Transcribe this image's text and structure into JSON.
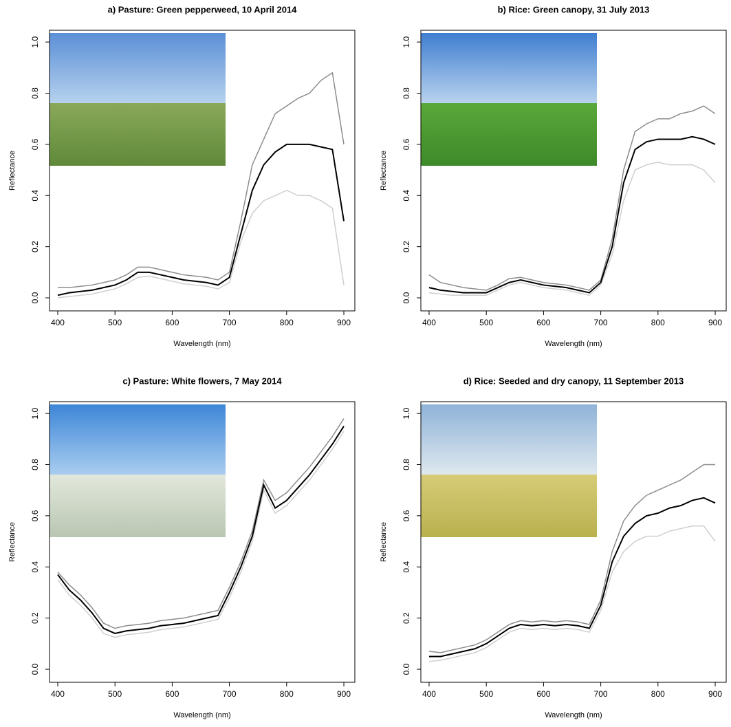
{
  "chart_data": [
    {
      "type": "line",
      "title": "a) Pasture: Green pepperweed, 10 April 2014",
      "xlabel": "Wavelength (nm)",
      "ylabel": "Reflectance",
      "x": [
        400,
        420,
        440,
        460,
        480,
        500,
        520,
        540,
        560,
        580,
        600,
        620,
        640,
        660,
        680,
        700,
        720,
        740,
        760,
        780,
        800,
        820,
        840,
        860,
        880,
        900
      ],
      "series": [
        {
          "color": "#8c8c8c",
          "values": [
            0.04,
            0.04,
            0.045,
            0.05,
            0.06,
            0.07,
            0.09,
            0.12,
            0.12,
            0.11,
            0.1,
            0.09,
            0.085,
            0.08,
            0.07,
            0.1,
            0.3,
            0.52,
            0.62,
            0.72,
            0.75,
            0.78,
            0.8,
            0.85,
            0.88,
            0.6
          ]
        },
        {
          "color": "#cfcfcf",
          "values": [
            0.0,
            0.005,
            0.01,
            0.015,
            0.025,
            0.035,
            0.055,
            0.08,
            0.085,
            0.075,
            0.065,
            0.055,
            0.05,
            0.045,
            0.035,
            0.06,
            0.22,
            0.33,
            0.38,
            0.4,
            0.42,
            0.4,
            0.4,
            0.38,
            0.35,
            0.05
          ]
        },
        {
          "color": "#000000",
          "values": [
            0.01,
            0.02,
            0.025,
            0.03,
            0.04,
            0.05,
            0.07,
            0.1,
            0.1,
            0.09,
            0.08,
            0.07,
            0.065,
            0.06,
            0.05,
            0.08,
            0.25,
            0.42,
            0.52,
            0.57,
            0.6,
            0.6,
            0.6,
            0.59,
            0.58,
            0.3
          ]
        }
      ],
      "xlim": [
        385.6,
        919.2
      ],
      "ylim": [
        -0.051,
        1.046
      ],
      "xticks": [
        400,
        500,
        600,
        700,
        800,
        900
      ],
      "yticks": [
        {
          "value": 0,
          "label": "0.0"
        },
        0.2,
        0.4,
        0.6,
        0.8,
        {
          "value": 1,
          "label": "1.0"
        }
      ]
    },
    {
      "type": "line",
      "title": "b) Rice: Green canopy, 31 July 2013",
      "xlabel": "Wavelength (nm)",
      "ylabel": "Reflectance",
      "x": [
        400,
        420,
        440,
        460,
        480,
        500,
        520,
        540,
        560,
        580,
        600,
        620,
        640,
        660,
        680,
        700,
        720,
        740,
        760,
        780,
        800,
        820,
        840,
        860,
        880,
        900
      ],
      "series": [
        {
          "color": "#8c8c8c",
          "values": [
            0.09,
            0.06,
            0.05,
            0.04,
            0.035,
            0.03,
            0.05,
            0.075,
            0.08,
            0.07,
            0.06,
            0.055,
            0.05,
            0.04,
            0.03,
            0.07,
            0.23,
            0.5,
            0.65,
            0.68,
            0.7,
            0.7,
            0.72,
            0.73,
            0.75,
            0.72
          ]
        },
        {
          "color": "#cfcfcf",
          "values": [
            0.02,
            0.015,
            0.01,
            0.01,
            0.01,
            0.01,
            0.03,
            0.05,
            0.06,
            0.05,
            0.04,
            0.035,
            0.03,
            0.02,
            0.01,
            0.05,
            0.17,
            0.38,
            0.5,
            0.52,
            0.53,
            0.52,
            0.52,
            0.52,
            0.5,
            0.45
          ]
        },
        {
          "color": "#000000",
          "values": [
            0.04,
            0.03,
            0.025,
            0.02,
            0.02,
            0.02,
            0.04,
            0.06,
            0.07,
            0.06,
            0.05,
            0.045,
            0.04,
            0.03,
            0.02,
            0.06,
            0.2,
            0.45,
            0.58,
            0.61,
            0.62,
            0.62,
            0.62,
            0.63,
            0.62,
            0.6
          ]
        }
      ],
      "xlim": [
        385.6,
        919.2
      ],
      "ylim": [
        -0.051,
        1.046
      ],
      "xticks": [
        400,
        500,
        600,
        700,
        800,
        900
      ],
      "yticks": [
        {
          "value": 0,
          "label": "0.0"
        },
        0.2,
        0.4,
        0.6,
        0.8,
        {
          "value": 1,
          "label": "1.0"
        }
      ]
    },
    {
      "type": "line",
      "title": "c) Pasture: White flowers, 7 May 2014",
      "xlabel": "Wavelength (nm)",
      "ylabel": "Reflectance",
      "x": [
        400,
        420,
        440,
        460,
        480,
        500,
        520,
        540,
        560,
        580,
        600,
        620,
        640,
        660,
        680,
        700,
        720,
        740,
        760,
        780,
        800,
        820,
        840,
        860,
        880,
        900
      ],
      "series": [
        {
          "color": "#8c8c8c",
          "values": [
            0.38,
            0.33,
            0.29,
            0.24,
            0.18,
            0.16,
            0.17,
            0.175,
            0.18,
            0.19,
            0.195,
            0.2,
            0.21,
            0.22,
            0.23,
            0.32,
            0.42,
            0.54,
            0.74,
            0.66,
            0.69,
            0.74,
            0.79,
            0.85,
            0.91,
            0.98
          ]
        },
        {
          "color": "#cfcfcf",
          "values": [
            0.35,
            0.29,
            0.25,
            0.2,
            0.14,
            0.125,
            0.135,
            0.14,
            0.145,
            0.155,
            0.16,
            0.165,
            0.175,
            0.185,
            0.195,
            0.28,
            0.38,
            0.5,
            0.7,
            0.61,
            0.64,
            0.69,
            0.74,
            0.8,
            0.86,
            0.93
          ]
        },
        {
          "color": "#000000",
          "values": [
            0.37,
            0.31,
            0.27,
            0.22,
            0.16,
            0.14,
            0.15,
            0.155,
            0.16,
            0.17,
            0.175,
            0.18,
            0.19,
            0.2,
            0.21,
            0.3,
            0.4,
            0.52,
            0.72,
            0.63,
            0.66,
            0.71,
            0.76,
            0.82,
            0.88,
            0.95
          ]
        }
      ],
      "xlim": [
        385.6,
        919.2
      ],
      "ylim": [
        -0.051,
        1.046
      ],
      "xticks": [
        400,
        500,
        600,
        700,
        800,
        900
      ],
      "yticks": [
        {
          "value": 0,
          "label": "0.0"
        },
        0.2,
        0.4,
        0.6,
        0.8,
        {
          "value": 1,
          "label": "1.0"
        }
      ]
    },
    {
      "type": "line",
      "title": "d) Rice: Seeded and dry canopy, 11 September 2013",
      "xlabel": "Wavelength (nm)",
      "ylabel": "Reflectance",
      "x": [
        400,
        420,
        440,
        460,
        480,
        500,
        520,
        540,
        560,
        580,
        600,
        620,
        640,
        660,
        680,
        700,
        720,
        740,
        760,
        780,
        800,
        820,
        840,
        860,
        880,
        900
      ],
      "series": [
        {
          "color": "#8c8c8c",
          "values": [
            0.07,
            0.065,
            0.075,
            0.085,
            0.095,
            0.115,
            0.145,
            0.175,
            0.19,
            0.185,
            0.19,
            0.185,
            0.19,
            0.185,
            0.175,
            0.27,
            0.46,
            0.58,
            0.64,
            0.68,
            0.7,
            0.72,
            0.74,
            0.77,
            0.8,
            0.8
          ]
        },
        {
          "color": "#cfcfcf",
          "values": [
            0.03,
            0.035,
            0.045,
            0.055,
            0.065,
            0.085,
            0.115,
            0.145,
            0.16,
            0.155,
            0.16,
            0.155,
            0.16,
            0.155,
            0.145,
            0.23,
            0.38,
            0.46,
            0.5,
            0.52,
            0.52,
            0.54,
            0.55,
            0.56,
            0.56,
            0.5
          ]
        },
        {
          "color": "#000000",
          "values": [
            0.05,
            0.05,
            0.06,
            0.07,
            0.08,
            0.1,
            0.13,
            0.16,
            0.175,
            0.17,
            0.175,
            0.17,
            0.175,
            0.17,
            0.16,
            0.25,
            0.42,
            0.52,
            0.57,
            0.6,
            0.61,
            0.63,
            0.64,
            0.66,
            0.67,
            0.65
          ]
        }
      ],
      "xlim": [
        385.6,
        919.2
      ],
      "ylim": [
        -0.051,
        1.046
      ],
      "xticks": [
        400,
        500,
        600,
        700,
        800,
        900
      ],
      "yticks": [
        {
          "value": 0,
          "label": "0.0"
        },
        0.2,
        0.4,
        0.6,
        0.8,
        {
          "value": 1,
          "label": "1.0"
        }
      ]
    }
  ]
}
